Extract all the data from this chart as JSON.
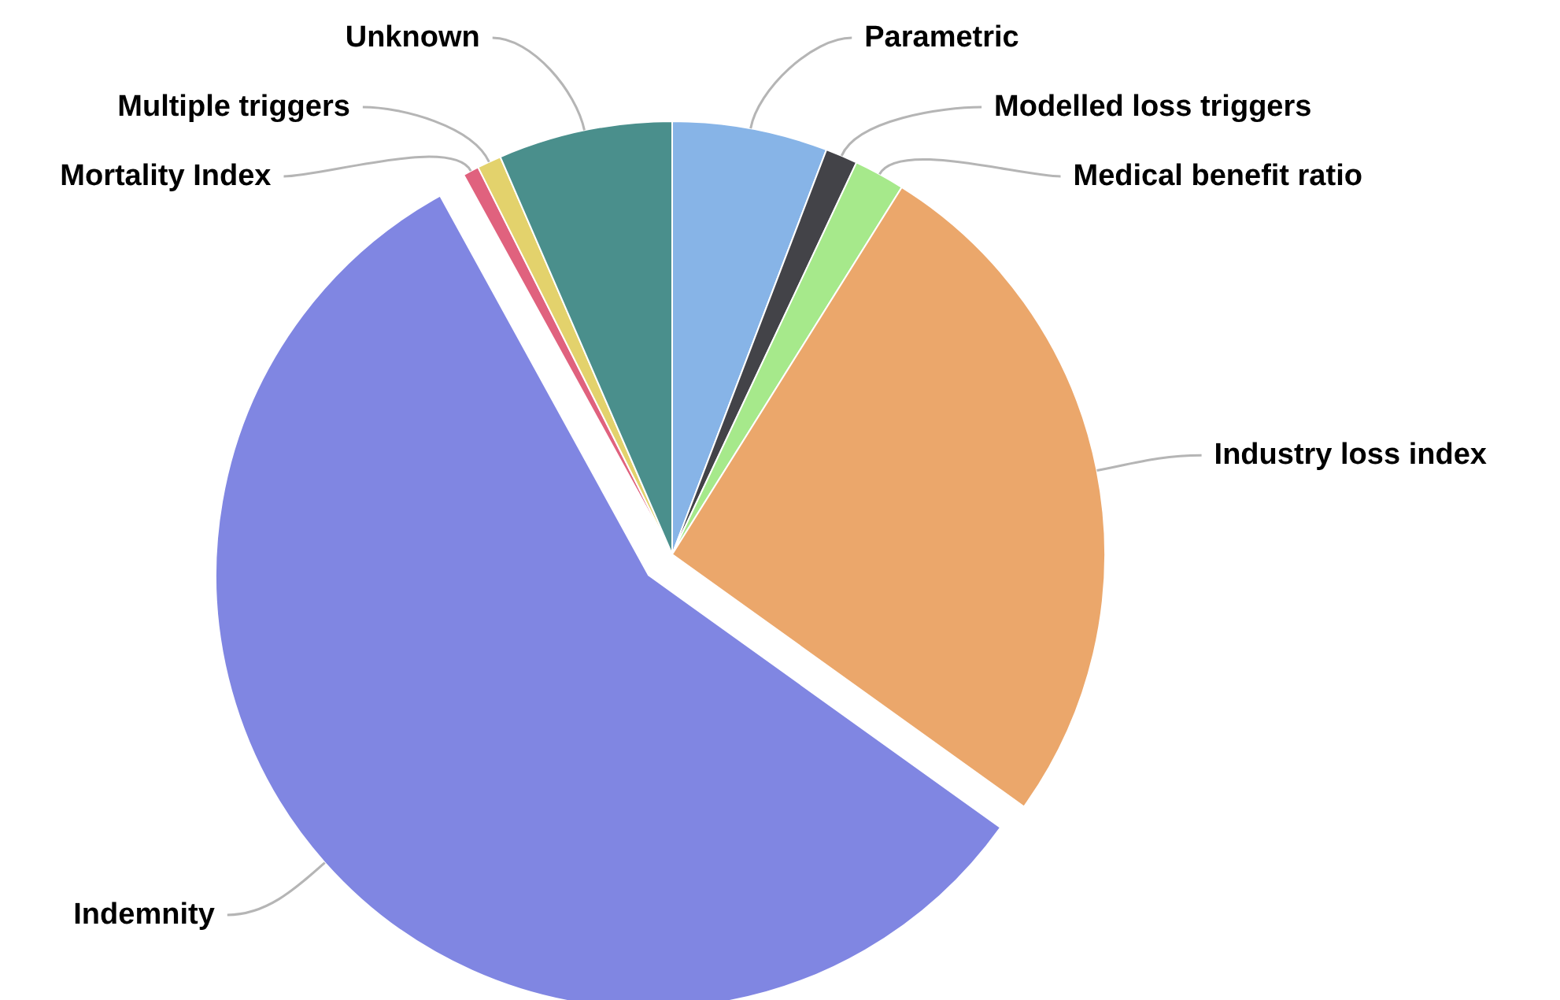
{
  "chart_data": {
    "type": "pie",
    "categories": [
      "Parametric",
      "Modelled loss triggers",
      "Medical benefit ratio",
      "Industry loss index",
      "Indemnity",
      "Mortality Index",
      "Multiple triggers",
      "Unknown"
    ],
    "values": [
      5.8,
      1.2,
      1.9,
      26.0,
      57.1,
      0.6,
      0.9,
      6.5
    ],
    "colors": [
      "#87b4e7",
      "#434348",
      "#a6e98b",
      "#eba76b",
      "#8086e2",
      "#e0627e",
      "#e3d26c",
      "#4a8f8c"
    ]
  }
}
